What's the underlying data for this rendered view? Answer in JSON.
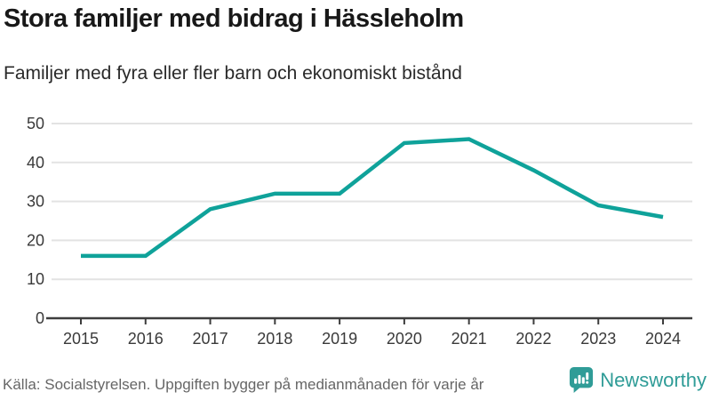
{
  "header": {
    "title": "Stora familjer med bidrag i Hässleholm",
    "subtitle": "Familjer med fyra eller fler barn och ekonomiskt bistånd"
  },
  "chart_data": {
    "type": "line",
    "categories": [
      "2015",
      "2016",
      "2017",
      "2018",
      "2019",
      "2020",
      "2021",
      "2022",
      "2023",
      "2024"
    ],
    "series": [
      {
        "name": "Familjer med fyra eller fler barn och ekonomiskt bistånd",
        "values": [
          16,
          16,
          28,
          32,
          32,
          45,
          46,
          38,
          29,
          26
        ]
      }
    ],
    "title": "Stora familjer med bidrag i Hässleholm",
    "xlabel": "",
    "ylabel": "",
    "ylim": [
      0,
      50
    ],
    "yticks": [
      0,
      10,
      20,
      30,
      40,
      50
    ],
    "grid": true,
    "legend": false,
    "line_color": "#0fa29a"
  },
  "footer": {
    "source": "Källa: Socialstyrelsen. Uppgiften bygger på medianmånaden för varje år",
    "brand": "Newsworthy"
  },
  "colors": {
    "accent": "#0fa29a",
    "brand": "#2f9c97",
    "axis": "#3d3d3d",
    "grid": "#e3e3e3",
    "tick_text": "#3a3a3a",
    "muted_text": "#666666"
  }
}
